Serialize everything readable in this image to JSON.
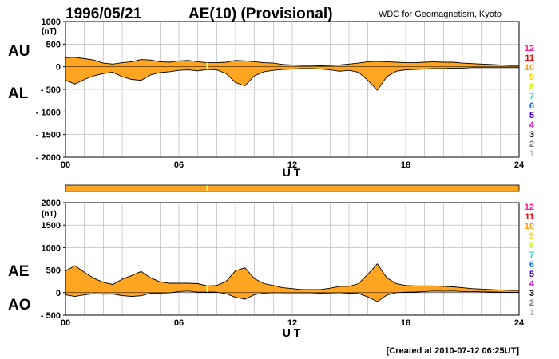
{
  "header": {
    "date": "1996/05/21",
    "title": "AE(10) (Provisional)",
    "source": "WDC for Geomagnetism, Kyoto"
  },
  "footer": {
    "created": "[Created at 2010-07-12 06:25UT]"
  },
  "colors": {
    "fill": "#ffa522",
    "gap_marker": "#ffff66",
    "grid": "#b0b0b0"
  },
  "station_legend": [
    {
      "label": "12",
      "color": "#ff1493"
    },
    {
      "label": "11",
      "color": "#ff0000"
    },
    {
      "label": "10",
      "color": "#ff9900"
    },
    {
      "label": "9",
      "color": "#ffcc00"
    },
    {
      "label": "8",
      "color": "#ccee00"
    },
    {
      "label": "7",
      "color": "#33cccc"
    },
    {
      "label": "6",
      "color": "#0066ff"
    },
    {
      "label": "5",
      "color": "#3300cc"
    },
    {
      "label": "4",
      "color": "#cc00cc"
    },
    {
      "label": "3",
      "color": "#000000"
    },
    {
      "label": "2",
      "color": "#777777"
    },
    {
      "label": "1",
      "color": "#bbbbbb"
    }
  ],
  "bar_strip": {
    "gap_hour": 7.5
  },
  "chart_data": [
    {
      "type": "area",
      "id": "au-al",
      "labels": {
        "upper": "AU",
        "lower": "AL",
        "unit": "(nT)"
      },
      "xlabel": "U T",
      "xlim": [
        0,
        24
      ],
      "xticks": [
        0,
        6,
        12,
        18,
        24
      ],
      "xtick_labels": [
        "00",
        "06",
        "12",
        "18",
        "24"
      ],
      "ylim": [
        -2000,
        1000
      ],
      "yticks": [
        1000,
        500,
        0,
        -500,
        -1000,
        -1500,
        -2000
      ],
      "ytick_labels": [
        "1000",
        "500",
        "0",
        "- 500",
        "- 1000",
        "- 1500",
        "- 2000"
      ],
      "gap_hour": 7.5,
      "x": [
        0,
        0.5,
        1,
        1.5,
        2,
        2.5,
        3,
        3.5,
        4,
        4.5,
        5,
        5.5,
        6,
        6.5,
        7,
        7.5,
        8,
        8.5,
        9,
        9.5,
        10,
        10.5,
        11,
        11.5,
        12,
        12.5,
        13,
        13.5,
        14,
        14.5,
        15,
        15.5,
        16,
        16.5,
        17,
        17.5,
        18,
        18.5,
        19,
        19.5,
        20,
        20.5,
        21,
        21.5,
        22,
        22.5,
        23,
        23.5,
        24
      ],
      "series": [
        {
          "name": "AU",
          "values": [
            200,
            210,
            180,
            150,
            80,
            60,
            90,
            110,
            160,
            150,
            110,
            100,
            130,
            140,
            110,
            90,
            90,
            100,
            140,
            130,
            110,
            90,
            80,
            50,
            40,
            30,
            30,
            20,
            30,
            40,
            60,
            80,
            110,
            120,
            110,
            100,
            90,
            90,
            100,
            110,
            100,
            100,
            80,
            70,
            60,
            50,
            40,
            30,
            30
          ]
        },
        {
          "name": "AL",
          "values": [
            -300,
            -380,
            -280,
            -200,
            -150,
            -120,
            -220,
            -280,
            -300,
            -180,
            -130,
            -110,
            -80,
            -70,
            -90,
            -60,
            -70,
            -150,
            -350,
            -420,
            -200,
            -110,
            -80,
            -60,
            -50,
            -40,
            -40,
            -50,
            -70,
            -100,
            -80,
            -120,
            -300,
            -520,
            -220,
            -100,
            -70,
            -60,
            -50,
            -40,
            -40,
            -30,
            -30,
            -20,
            -20,
            -20,
            -20,
            -20,
            -20
          ]
        }
      ]
    },
    {
      "type": "area",
      "id": "ae-ao",
      "labels": {
        "upper": "AE",
        "lower": "AO",
        "unit": "(nT)"
      },
      "xlabel": "U T",
      "xlim": [
        0,
        24
      ],
      "xticks": [
        0,
        6,
        12,
        18,
        24
      ],
      "xtick_labels": [
        "00",
        "06",
        "12",
        "18",
        "24"
      ],
      "ylim": [
        -500,
        2000
      ],
      "yticks": [
        2000,
        1500,
        1000,
        500,
        0,
        -500
      ],
      "ytick_labels": [
        "2000",
        "1500",
        "1000",
        "500",
        "0",
        "- 500"
      ],
      "gap_hour": 7.5,
      "x": [
        0,
        0.5,
        1,
        1.5,
        2,
        2.5,
        3,
        3.5,
        4,
        4.5,
        5,
        5.5,
        6,
        6.5,
        7,
        7.5,
        8,
        8.5,
        9,
        9.5,
        10,
        10.5,
        11,
        11.5,
        12,
        12.5,
        13,
        13.5,
        14,
        14.5,
        15,
        15.5,
        16,
        16.5,
        17,
        17.5,
        18,
        18.5,
        19,
        19.5,
        20,
        20.5,
        21,
        21.5,
        22,
        22.5,
        23,
        23.5,
        24
      ],
      "series": [
        {
          "name": "AE",
          "values": [
            480,
            600,
            450,
            320,
            230,
            180,
            300,
            380,
            470,
            330,
            240,
            210,
            210,
            210,
            200,
            150,
            160,
            250,
            490,
            550,
            310,
            200,
            160,
            110,
            90,
            70,
            70,
            70,
            100,
            140,
            140,
            200,
            410,
            640,
            330,
            200,
            160,
            150,
            150,
            150,
            140,
            130,
            110,
            90,
            80,
            70,
            60,
            50,
            50
          ]
        },
        {
          "name": "AO",
          "values": [
            -50,
            -85,
            -50,
            -25,
            -35,
            -30,
            -65,
            -85,
            -70,
            -15,
            -10,
            -5,
            25,
            35,
            10,
            15,
            10,
            -25,
            -105,
            -145,
            -45,
            -10,
            0,
            -5,
            -5,
            -5,
            -5,
            -15,
            -20,
            -30,
            -10,
            -20,
            -95,
            -200,
            -55,
            0,
            10,
            15,
            25,
            35,
            30,
            35,
            25,
            25,
            20,
            15,
            10,
            5,
            5
          ]
        }
      ]
    }
  ]
}
